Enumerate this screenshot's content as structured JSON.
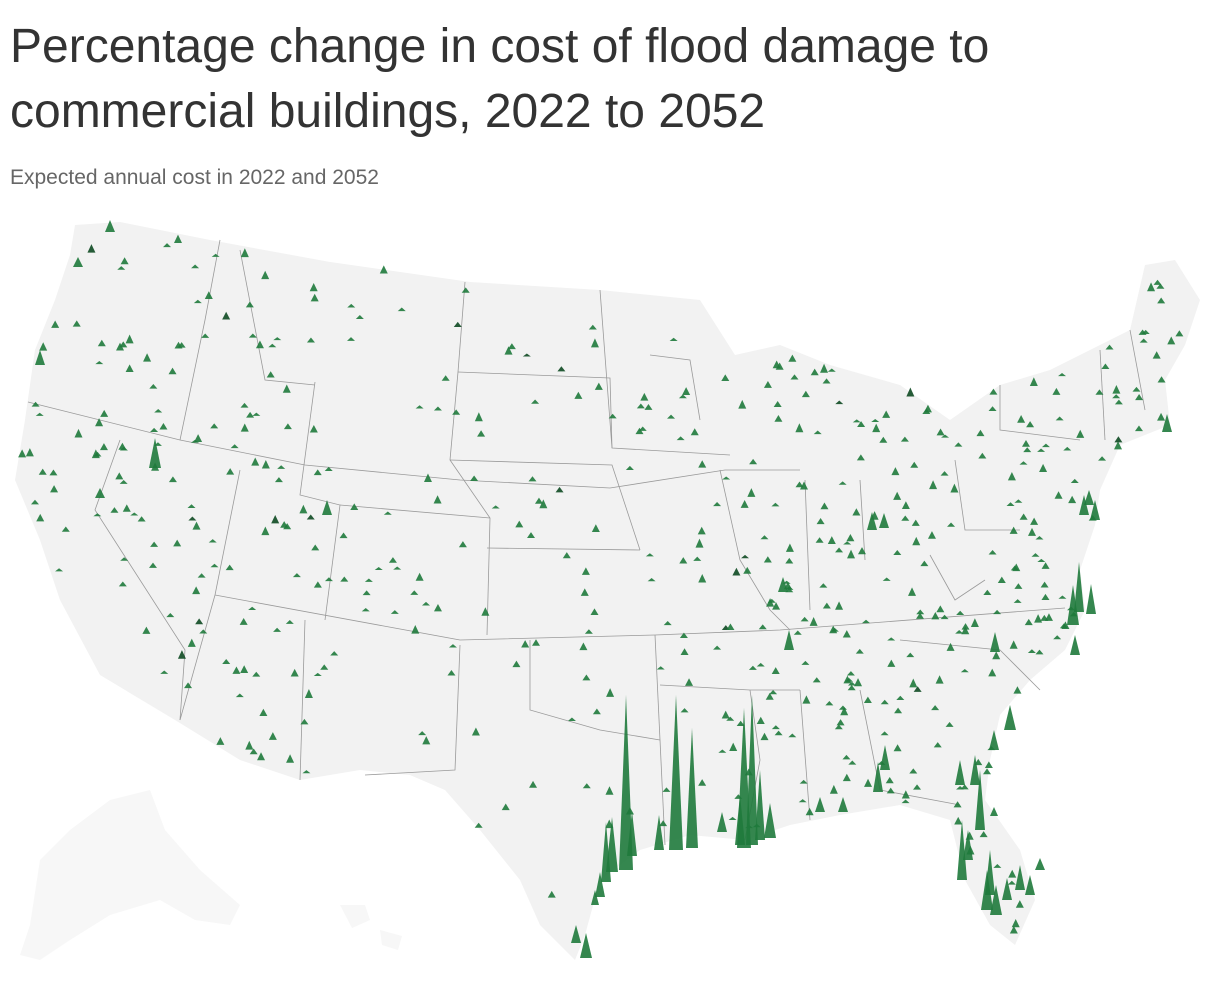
{
  "header": {
    "title": "Percentage change in cost of flood damage to commercial buildings, 2022 to 2052",
    "subtitle": "Expected annual cost in 2022 and 2052"
  },
  "colors": {
    "land": "#f2f2f2",
    "border": "#9a9a9a",
    "spike": "#1f7a3c",
    "spike_dark": "#0e4a22",
    "title": "#333333",
    "subtitle": "#666666"
  },
  "map_data": {
    "region": "Contiguous United States",
    "encoding": "spike height = percentage change in expected annual flood damage cost",
    "largest_spikes_near": [
      "Gulf Coast of Texas",
      "Louisiana",
      "Mississippi River delta",
      "Florida",
      "Atlantic Coast (Carolinas to New Jersey)"
    ]
  }
}
